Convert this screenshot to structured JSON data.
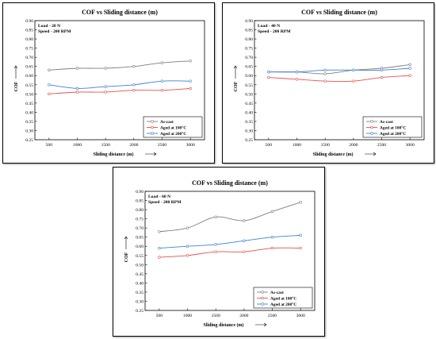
{
  "chart_data": [
    {
      "type": "line",
      "title": "COF vs Sliding distance (m)",
      "xlabel": "Sliding distance (m)",
      "ylabel": "COF",
      "x": [
        500,
        1000,
        1500,
        2000,
        2500,
        3000
      ],
      "ylim": [
        0.25,
        0.9
      ],
      "yticks": [
        "0.25",
        "0.30",
        "0.35",
        "0.40",
        "0.45",
        "0.50",
        "0.55",
        "0.60",
        "0.65",
        "0.70",
        "0.75",
        "0.80",
        "0.85",
        "0.90"
      ],
      "annotations": [
        "Load - 20 N",
        "Speed - 200 RPM"
      ],
      "legend_position": "bottom-right",
      "series": [
        {
          "name": "As-cast",
          "color": "#7f7f7f",
          "values": [
            0.63,
            0.64,
            0.64,
            0.65,
            0.67,
            0.68
          ]
        },
        {
          "name": "Aged at 100°C",
          "color": "#e8504a",
          "values": [
            0.5,
            0.51,
            0.51,
            0.52,
            0.52,
            0.53
          ]
        },
        {
          "name": "Aged at 200°C",
          "color": "#3b82d6",
          "values": [
            0.55,
            0.53,
            0.54,
            0.55,
            0.57,
            0.57
          ]
        }
      ]
    },
    {
      "type": "line",
      "title": "COF vs Sliding distance (m)",
      "xlabel": "Sliding distance (m)",
      "ylabel": "COF",
      "x": [
        500,
        1000,
        1500,
        2000,
        2500,
        3000
      ],
      "ylim": [
        0.25,
        0.9
      ],
      "yticks": [
        "0.25",
        "0.30",
        "0.35",
        "0.40",
        "0.45",
        "0.50",
        "0.55",
        "0.60",
        "0.65",
        "0.70",
        "0.75",
        "0.80",
        "0.85",
        "0.90"
      ],
      "annotations": [
        "Load - 40 N",
        "Speed - 200 RPM"
      ],
      "legend_position": "bottom-right",
      "series": [
        {
          "name": "As-cast",
          "color": "#7f7f7f",
          "values": [
            0.62,
            0.62,
            0.61,
            0.63,
            0.64,
            0.66
          ]
        },
        {
          "name": "Aged at 100°C",
          "color": "#e8504a",
          "values": [
            0.59,
            0.58,
            0.57,
            0.57,
            0.59,
            0.6
          ]
        },
        {
          "name": "Aged at 200°C",
          "color": "#3b82d6",
          "values": [
            0.62,
            0.62,
            0.63,
            0.63,
            0.63,
            0.64
          ]
        }
      ]
    },
    {
      "type": "line",
      "title": "COF vs Sliding distance (m)",
      "xlabel": "Sliding distance (m)",
      "ylabel": "COF",
      "x": [
        500,
        1000,
        1500,
        2000,
        2500,
        3000
      ],
      "ylim": [
        0.25,
        0.9
      ],
      "yticks": [
        "0.25",
        "0.30",
        "0.35",
        "0.40",
        "0.45",
        "0.50",
        "0.55",
        "0.60",
        "0.65",
        "0.70",
        "0.75",
        "0.80",
        "0.85",
        "0.90"
      ],
      "annotations": [
        "Load - 60 N",
        "Speed - 200 RPM"
      ],
      "legend_position": "bottom-right",
      "series": [
        {
          "name": "As-cast",
          "color": "#7f7f7f",
          "values": [
            0.68,
            0.7,
            0.76,
            0.74,
            0.79,
            0.84
          ]
        },
        {
          "name": "Aged at 100°C",
          "color": "#e8504a",
          "values": [
            0.54,
            0.55,
            0.57,
            0.57,
            0.59,
            0.59
          ]
        },
        {
          "name": "Aged at 200°C",
          "color": "#3b82d6",
          "values": [
            0.59,
            0.6,
            0.61,
            0.63,
            0.65,
            0.66
          ]
        }
      ]
    }
  ]
}
